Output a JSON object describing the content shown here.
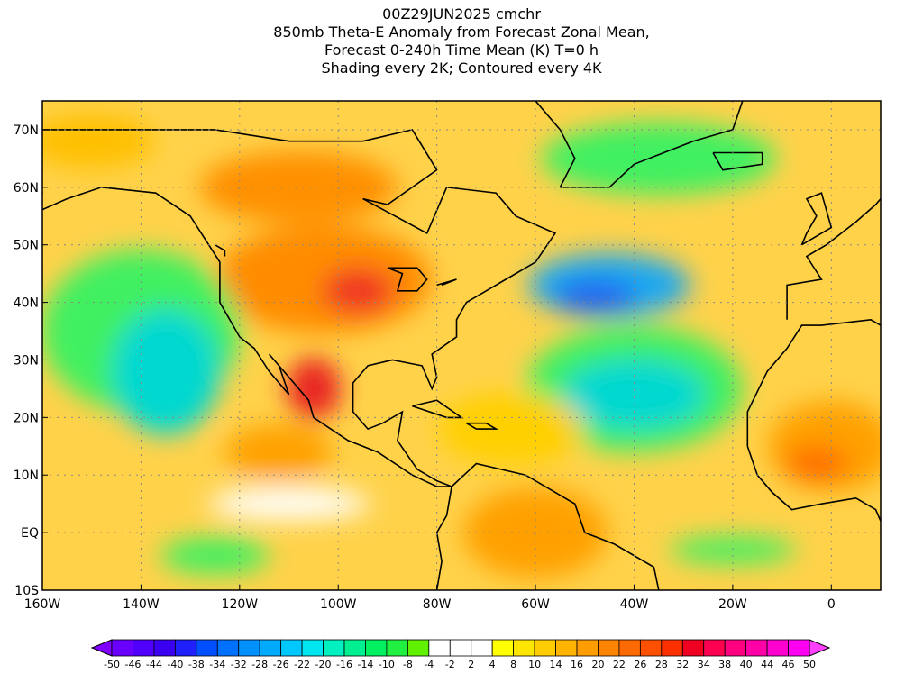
{
  "title": {
    "lines": [
      "00Z29JUN2025 cmchr",
      "850mb Theta-E Anomaly from Forecast Zonal Mean,",
      "Forecast 0-240h Time Mean (K) T=0 h",
      "Shading every 2K; Contoured every 4K"
    ]
  },
  "map": {
    "lon_range": [
      -160,
      10
    ],
    "lat_range": [
      -10,
      75
    ],
    "lat_labels": [
      "70N",
      "60N",
      "50N",
      "40N",
      "30N",
      "20N",
      "10N",
      "EQ",
      "10S"
    ],
    "lat_values": [
      70,
      60,
      50,
      40,
      30,
      20,
      10,
      0,
      -10
    ],
    "lon_labels": [
      "160W",
      "140W",
      "120W",
      "100W",
      "80W",
      "60W",
      "40W",
      "20W",
      "0"
    ],
    "lon_values": [
      -160,
      -140,
      -120,
      -100,
      -80,
      -60,
      -40,
      -20,
      0
    ]
  },
  "colorbar": {
    "labels": [
      "-50",
      "-46",
      "-44",
      "-40",
      "-38",
      "-34",
      "-32",
      "-28",
      "-26",
      "-22",
      "-20",
      "-16",
      "-14",
      "-10",
      "-8",
      "-4",
      "-2",
      "2",
      "4",
      "8",
      "10",
      "14",
      "16",
      "20",
      "22",
      "26",
      "28",
      "32",
      "34",
      "38",
      "40",
      "44",
      "46",
      "50"
    ],
    "colors": [
      "#8000ff",
      "#6a00ff",
      "#5000ff",
      "#3a00f0",
      "#2020ff",
      "#0050ff",
      "#0070ff",
      "#0090ff",
      "#00aaff",
      "#00c8ff",
      "#00e6f0",
      "#00f0c0",
      "#00f090",
      "#00f060",
      "#20f040",
      "#60f000",
      "#ffffff",
      "#ffffff",
      "#ffffff",
      "#ffff00",
      "#ffe600",
      "#ffcc00",
      "#ffb400",
      "#ff9c00",
      "#ff8400",
      "#ff6a00",
      "#ff5000",
      "#ff3000",
      "#f00020",
      "#ff0050",
      "#ff0080",
      "#ff00a8",
      "#ff00d0",
      "#ff00f0",
      "#ff40ff"
    ]
  },
  "regions": [
    {
      "name": "n-america-warm",
      "color": "#ff8c00",
      "lon": -103,
      "lat": 44,
      "rx": 120,
      "ry": 60
    },
    {
      "name": "plains-hot",
      "color": "#f03020",
      "lon": -96,
      "lat": 42,
      "rx": 40,
      "ry": 25
    },
    {
      "name": "mexico-hot",
      "color": "#e82020",
      "lon": -105,
      "lat": 25,
      "rx": 30,
      "ry": 35
    },
    {
      "name": "east-pacific-orange",
      "color": "#ffa000",
      "lon": -112,
      "lat": 14,
      "rx": 60,
      "ry": 30
    },
    {
      "name": "canada-orange",
      "color": "#ff9000",
      "lon": -108,
      "lat": 60,
      "rx": 110,
      "ry": 40
    },
    {
      "name": "alaska-yellow",
      "color": "#ffc000",
      "lon": -150,
      "lat": 68,
      "rx": 70,
      "ry": 30
    },
    {
      "name": "pacific-green",
      "color": "#40f060",
      "lon": -140,
      "lat": 35,
      "rx": 110,
      "ry": 90
    },
    {
      "name": "pacific-cyan",
      "color": "#00d8d0",
      "lon": -135,
      "lat": 28,
      "rx": 60,
      "ry": 70
    },
    {
      "name": "atlantic-green",
      "color": "#40f060",
      "lon": -40,
      "lat": 25,
      "rx": 120,
      "ry": 70
    },
    {
      "name": "atlantic-cyan",
      "color": "#00d8d0",
      "lon": -40,
      "lat": 24,
      "rx": 80,
      "ry": 40
    },
    {
      "name": "north-atlantic-blue",
      "color": "#1aa8f0",
      "lon": -45,
      "lat": 43,
      "rx": 90,
      "ry": 35
    },
    {
      "name": "north-atlantic-deep",
      "color": "#2060f0",
      "lon": -48,
      "lat": 41,
      "rx": 45,
      "ry": 18
    },
    {
      "name": "greenland-green",
      "color": "#40f060",
      "lon": -35,
      "lat": 65,
      "rx": 130,
      "ry": 40
    },
    {
      "name": "caribbean-yellow",
      "color": "#ffd000",
      "lon": -65,
      "lat": 18,
      "rx": 80,
      "ry": 40
    },
    {
      "name": "south-america-orange",
      "color": "#ffa000",
      "lon": -60,
      "lat": 0,
      "rx": 80,
      "ry": 50
    },
    {
      "name": "africa-orange",
      "color": "#ffa000",
      "lon": 0,
      "lat": 15,
      "rx": 70,
      "ry": 50
    },
    {
      "name": "africa-hot",
      "color": "#ff6a00",
      "lon": -3,
      "lat": 12,
      "rx": 35,
      "ry": 18
    },
    {
      "name": "equator-white",
      "color": "#ffffff",
      "lon": -110,
      "lat": 5,
      "rx": 90,
      "ry": 18
    },
    {
      "name": "south-pacific-green",
      "color": "#40f060",
      "lon": -125,
      "lat": -4,
      "rx": 60,
      "ry": 20
    },
    {
      "name": "south-atlantic-green",
      "color": "#40f060",
      "lon": -20,
      "lat": -3,
      "rx": 70,
      "ry": 15
    }
  ]
}
